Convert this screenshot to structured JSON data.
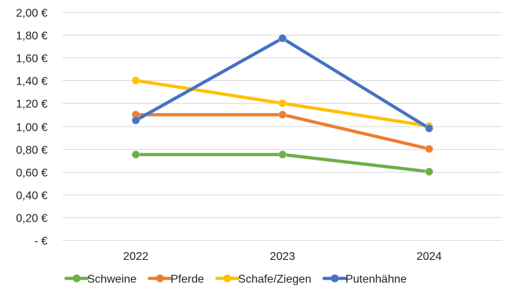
{
  "chart_data": {
    "type": "line",
    "title": "",
    "xlabel": "",
    "ylabel": "",
    "categories": [
      "2022",
      "2023",
      "2024"
    ],
    "ylim": [
      0,
      2.0
    ],
    "y_ticks": [
      {
        "value": 0,
        "label": "-  €"
      },
      {
        "value": 0.2,
        "label": "0,20 €"
      },
      {
        "value": 0.4,
        "label": "0,40 €"
      },
      {
        "value": 0.6,
        "label": "0,60 €"
      },
      {
        "value": 0.8,
        "label": "0,80 €"
      },
      {
        "value": 1.0,
        "label": "1,00 €"
      },
      {
        "value": 1.2,
        "label": "1,20 €"
      },
      {
        "value": 1.4,
        "label": "1,40 €"
      },
      {
        "value": 1.6,
        "label": "1,60 €"
      },
      {
        "value": 1.8,
        "label": "1,80 €"
      },
      {
        "value": 2.0,
        "label": "2,00 €"
      }
    ],
    "grid": true,
    "legend_position": "bottom",
    "series": [
      {
        "name": "Schweine",
        "color": "#70AD47",
        "values": [
          0.75,
          0.75,
          0.6
        ]
      },
      {
        "name": "Pferde",
        "color": "#ED7D31",
        "values": [
          1.1,
          1.1,
          0.8
        ]
      },
      {
        "name": "Schafe/Ziegen",
        "color": "#FFC000",
        "values": [
          1.4,
          1.2,
          1.0
        ]
      },
      {
        "name": "Putenhähne",
        "color": "#4472C4",
        "values": [
          1.05,
          1.77,
          0.98
        ]
      }
    ]
  }
}
